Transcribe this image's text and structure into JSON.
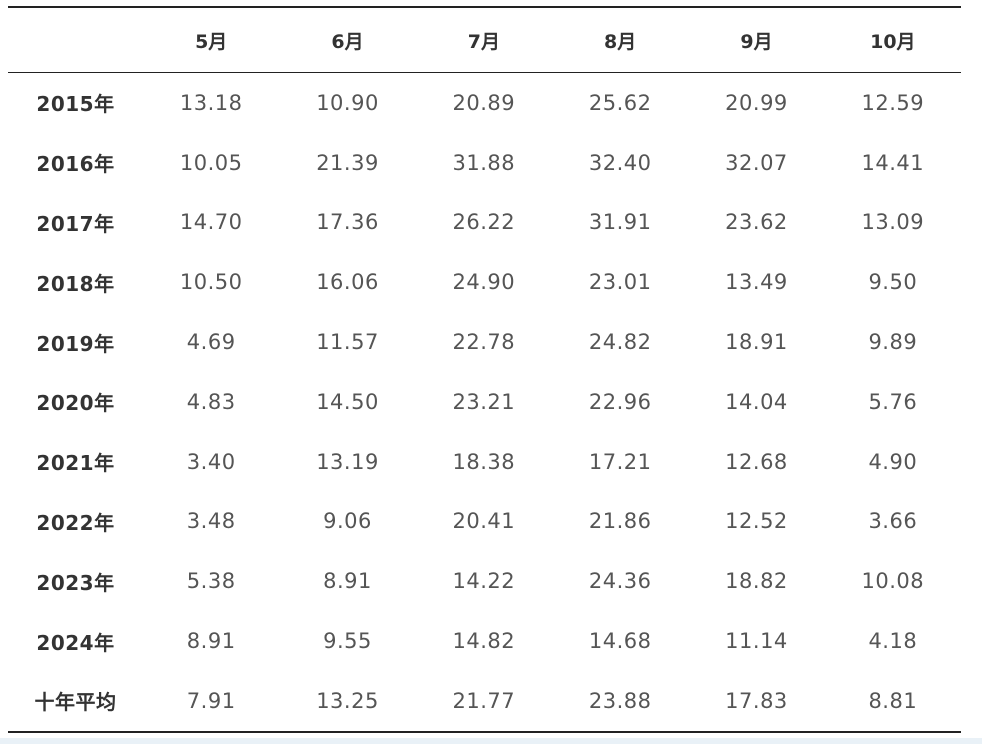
{
  "table": {
    "corner": "",
    "columns": [
      "5月",
      "6月",
      "7月",
      "8月",
      "9月",
      "10月"
    ],
    "rows": [
      {
        "label": "2015年",
        "values": [
          "13.18",
          "10.90",
          "20.89",
          "25.62",
          "20.99",
          "12.59"
        ]
      },
      {
        "label": "2016年",
        "values": [
          "10.05",
          "21.39",
          "31.88",
          "32.40",
          "32.07",
          "14.41"
        ]
      },
      {
        "label": "2017年",
        "values": [
          "14.70",
          "17.36",
          "26.22",
          "31.91",
          "23.62",
          "13.09"
        ]
      },
      {
        "label": "2018年",
        "values": [
          "10.50",
          "16.06",
          "24.90",
          "23.01",
          "13.49",
          "9.50"
        ]
      },
      {
        "label": "2019年",
        "values": [
          "4.69",
          "11.57",
          "22.78",
          "24.82",
          "18.91",
          "9.89"
        ]
      },
      {
        "label": "2020年",
        "values": [
          "4.83",
          "14.50",
          "23.21",
          "22.96",
          "14.04",
          "5.76"
        ]
      },
      {
        "label": "2021年",
        "values": [
          "3.40",
          "13.19",
          "18.38",
          "17.21",
          "12.68",
          "4.90"
        ]
      },
      {
        "label": "2022年",
        "values": [
          "3.48",
          "9.06",
          "20.41",
          "21.86",
          "12.52",
          "3.66"
        ]
      },
      {
        "label": "2023年",
        "values": [
          "5.38",
          "8.91",
          "14.22",
          "24.36",
          "18.82",
          "10.08"
        ]
      },
      {
        "label": "2024年",
        "values": [
          "8.91",
          "9.55",
          "14.82",
          "14.68",
          "11.14",
          "4.18"
        ]
      },
      {
        "label": "十年平均",
        "values": [
          "7.91",
          "13.25",
          "21.77",
          "23.88",
          "17.83",
          "8.81"
        ]
      }
    ]
  }
}
